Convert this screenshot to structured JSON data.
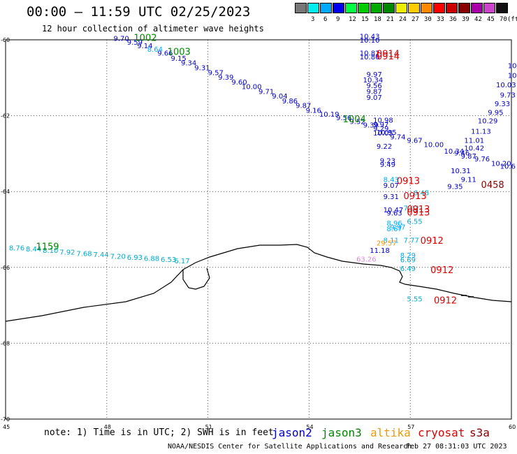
{
  "title": "00:00 – 11:59 UTC 02/25/2023",
  "subtitle": "12 hour collection of altimeter wave heights",
  "note": "note:  1) Time is in UTC;  2) SWH is in feet",
  "credit": "NOAA/NESDIS Center for Satellite Applications and Research",
  "timestamp": "Feb 27 08:31:03 UTC 2023",
  "legend": [
    {
      "name": "jason2",
      "color": "#0000cc"
    },
    {
      "name": "jason3",
      "color": "#008800"
    },
    {
      "name": "altika",
      "color": "#ee9900"
    },
    {
      "name": "cryosat",
      "color": "#dd0000"
    },
    {
      "name": "s3a",
      "color": "#880000"
    }
  ],
  "color_scale": {
    "unit": "(ft)",
    "bins": [
      {
        "color": "#777777",
        "label": ""
      },
      {
        "color": "#00eeee",
        "label": "3"
      },
      {
        "color": "#00aaff",
        "label": "6"
      },
      {
        "color": "#0000ee",
        "label": "9"
      },
      {
        "color": "#00ff44",
        "label": "12"
      },
      {
        "color": "#00cc00",
        "label": "15"
      },
      {
        "color": "#00aa00",
        "label": "18"
      },
      {
        "color": "#008800",
        "label": "21"
      },
      {
        "color": "#eeee00",
        "label": "24"
      },
      {
        "color": "#ffcc00",
        "label": "27"
      },
      {
        "color": "#ff8800",
        "label": "30"
      },
      {
        "color": "#ff0000",
        "label": "33"
      },
      {
        "color": "#cc0000",
        "label": "36"
      },
      {
        "color": "#880000",
        "label": "39"
      },
      {
        "color": "#aa00aa",
        "label": "42"
      },
      {
        "color": "#cc44cc",
        "label": "45"
      },
      {
        "color": "#111111",
        "label": "70"
      }
    ]
  },
  "map": {
    "lon_range": [
      45,
      60
    ],
    "lat_range": [
      -70,
      -60
    ],
    "lon_ticks": [
      "45",
      "48",
      "51",
      "54",
      "57",
      "60"
    ],
    "lat_ticks": [
      "-60",
      "-62",
      "-64",
      "-66",
      "-68",
      "-70"
    ],
    "observations": [
      {
        "lon": 45.1,
        "lat": -65.55,
        "text": "8.76",
        "color": "#00aacc"
      },
      {
        "lon": 45.6,
        "lat": -65.58,
        "text": "8.44",
        "color": "#00aacc"
      },
      {
        "lon": 46.1,
        "lat": -65.62,
        "text": "8.10",
        "color": "#00aacc"
      },
      {
        "lon": 46.6,
        "lat": -65.66,
        "text": "7.92",
        "color": "#00aacc"
      },
      {
        "lon": 47.1,
        "lat": -65.7,
        "text": "7.68",
        "color": "#00aacc"
      },
      {
        "lon": 47.6,
        "lat": -65.73,
        "text": "7.44",
        "color": "#00aacc"
      },
      {
        "lon": 48.1,
        "lat": -65.77,
        "text": "7.20",
        "color": "#00aacc"
      },
      {
        "lon": 48.6,
        "lat": -65.8,
        "text": "6.93",
        "color": "#00aacc"
      },
      {
        "lon": 49.1,
        "lat": -65.83,
        "text": "6.88",
        "color": "#00aacc"
      },
      {
        "lon": 49.6,
        "lat": -65.86,
        "text": "6.53",
        "color": "#00aacc"
      },
      {
        "lon": 50.0,
        "lat": -65.89,
        "text": "6.17",
        "color": "#00aacc"
      },
      {
        "lon": 48.2,
        "lat": -60.03,
        "text": "9.70",
        "color": "#0000cc"
      },
      {
        "lon": 48.6,
        "lat": -60.13,
        "text": "9.59",
        "color": "#0000cc"
      },
      {
        "lon": 48.9,
        "lat": -60.22,
        "text": "9.14",
        "color": "#0000cc"
      },
      {
        "lon": 49.2,
        "lat": -60.31,
        "text": "8.64",
        "color": "#00aaff"
      },
      {
        "lon": 49.5,
        "lat": -60.41,
        "text": "9.66",
        "color": "#0000cc"
      },
      {
        "lon": 49.9,
        "lat": -60.55,
        "text": "9.15",
        "color": "#0000cc"
      },
      {
        "lon": 50.2,
        "lat": -60.67,
        "text": "9.34",
        "color": "#0000cc"
      },
      {
        "lon": 50.6,
        "lat": -60.8,
        "text": "9.31",
        "color": "#0000cc"
      },
      {
        "lon": 51.0,
        "lat": -60.93,
        "text": "9.57",
        "color": "#0000cc"
      },
      {
        "lon": 51.3,
        "lat": -61.05,
        "text": "9.39",
        "color": "#0000cc"
      },
      {
        "lon": 51.7,
        "lat": -61.18,
        "text": "9.60",
        "color": "#0000cc"
      },
      {
        "lon": 52.0,
        "lat": -61.3,
        "text": "10.00",
        "color": "#0000cc"
      },
      {
        "lon": 52.5,
        "lat": -61.43,
        "text": "9.71",
        "color": "#0000cc"
      },
      {
        "lon": 52.9,
        "lat": -61.55,
        "text": "9.04",
        "color": "#0000cc"
      },
      {
        "lon": 53.2,
        "lat": -61.68,
        "text": "9.86",
        "color": "#0000cc"
      },
      {
        "lon": 53.6,
        "lat": -61.8,
        "text": "9.87",
        "color": "#0000cc"
      },
      {
        "lon": 53.9,
        "lat": -61.92,
        "text": "9.16",
        "color": "#0000cc"
      },
      {
        "lon": 54.3,
        "lat": -62.03,
        "text": "10.19",
        "color": "#0000cc"
      },
      {
        "lon": 54.8,
        "lat": -62.12,
        "text": "9.56",
        "color": "#0000cc"
      },
      {
        "lon": 55.2,
        "lat": -62.22,
        "text": "9.52",
        "color": "#0000cc"
      },
      {
        "lon": 55.6,
        "lat": -62.31,
        "text": "9.39",
        "color": "#0000cc"
      },
      {
        "lon": 55.9,
        "lat": -62.4,
        "text": "9.29",
        "color": "#0000cc"
      },
      {
        "lon": 56.0,
        "lat": -62.5,
        "text": "10.95",
        "color": "#0000cc"
      },
      {
        "lon": 56.4,
        "lat": -62.62,
        "text": "9.74",
        "color": "#0000cc"
      },
      {
        "lon": 56.9,
        "lat": -62.72,
        "text": "9.67",
        "color": "#0000cc"
      },
      {
        "lon": 55.5,
        "lat": -59.97,
        "text": "10.43",
        "color": "#0000cc"
      },
      {
        "lon": 55.5,
        "lat": -60.07,
        "text": "10.10",
        "color": "#0000cc"
      },
      {
        "lon": 55.5,
        "lat": -60.41,
        "text": "10.82",
        "color": "#0000cc"
      },
      {
        "lon": 55.5,
        "lat": -60.52,
        "text": "10.86",
        "color": "#0000cc"
      },
      {
        "lon": 55.7,
        "lat": -60.98,
        "text": "9.97",
        "color": "#0000cc"
      },
      {
        "lon": 55.6,
        "lat": -61.12,
        "text": "10.34",
        "color": "#0000cc"
      },
      {
        "lon": 55.7,
        "lat": -61.27,
        "text": "9.56",
        "color": "#0000cc"
      },
      {
        "lon": 55.7,
        "lat": -61.43,
        "text": "9.87",
        "color": "#0000cc"
      },
      {
        "lon": 55.7,
        "lat": -61.58,
        "text": "9.07",
        "color": "#0000cc"
      },
      {
        "lon": 55.9,
        "lat": -62.18,
        "text": "10.98",
        "color": "#0000cc"
      },
      {
        "lon": 55.9,
        "lat": -62.3,
        "text": "9.97",
        "color": "#0000cc"
      },
      {
        "lon": 55.9,
        "lat": -62.52,
        "text": "10.05",
        "color": "#0000cc"
      },
      {
        "lon": 56.0,
        "lat": -62.87,
        "text": "9.22",
        "color": "#0000cc"
      },
      {
        "lon": 56.1,
        "lat": -63.25,
        "text": "9.23",
        "color": "#0000cc"
      },
      {
        "lon": 56.1,
        "lat": -63.35,
        "text": "9.49",
        "color": "#0000cc"
      },
      {
        "lon": 56.2,
        "lat": -63.75,
        "text": "8.43",
        "color": "#00aaff"
      },
      {
        "lon": 56.2,
        "lat": -63.9,
        "text": "9.07",
        "color": "#0000cc"
      },
      {
        "lon": 56.2,
        "lat": -64.2,
        "text": "9.31",
        "color": "#0000cc"
      },
      {
        "lon": 56.2,
        "lat": -64.55,
        "text": "10.47",
        "color": "#0000cc"
      },
      {
        "lon": 56.3,
        "lat": -64.63,
        "text": "9.63",
        "color": "#0000cc"
      },
      {
        "lon": 56.3,
        "lat": -64.9,
        "text": "8.96",
        "color": "#00aaff"
      },
      {
        "lon": 56.3,
        "lat": -65.05,
        "text": "8.67",
        "color": "#00aaff"
      },
      {
        "lon": 56.4,
        "lat": -65.0,
        "text": "9.97",
        "color": "#00aaff"
      },
      {
        "lon": 56.2,
        "lat": -65.35,
        "text": "8.11",
        "color": "#00aaff"
      },
      {
        "lon": 56.8,
        "lat": -65.35,
        "text": "7.77",
        "color": "#00aacc"
      },
      {
        "lon": 56.8,
        "lat": -64.5,
        "text": "7.02",
        "color": "#00aacc"
      },
      {
        "lon": 56.9,
        "lat": -64.85,
        "text": "6.55",
        "color": "#00aacc"
      },
      {
        "lon": 57.1,
        "lat": -64.1,
        "text": "6.45",
        "color": "#00aacc"
      },
      {
        "lon": 55.8,
        "lat": -65.62,
        "text": "11.18",
        "color": "#0000cc"
      },
      {
        "lon": 56.7,
        "lat": -65.75,
        "text": "8.29",
        "color": "#00aaff"
      },
      {
        "lon": 56.7,
        "lat": -65.87,
        "text": "6.69",
        "color": "#00aacc"
      },
      {
        "lon": 56.7,
        "lat": -66.1,
        "text": "6.49",
        "color": "#00aacc"
      },
      {
        "lon": 56.9,
        "lat": -66.9,
        "text": "5.55",
        "color": "#00aacc"
      },
      {
        "lon": 56.0,
        "lat": -65.42,
        "text": "29.57",
        "color": "#ee9900"
      },
      {
        "lon": 55.4,
        "lat": -65.85,
        "text": "63.26",
        "color": "#dd88dd"
      },
      {
        "lon": 57.4,
        "lat": -62.83,
        "text": "10.00",
        "color": "#0000cc"
      },
      {
        "lon": 58.0,
        "lat": -63.0,
        "text": "10.34",
        "color": "#0000cc"
      },
      {
        "lon": 58.3,
        "lat": -63.05,
        "text": "9.46",
        "color": "#0000cc"
      },
      {
        "lon": 58.5,
        "lat": -63.13,
        "text": "9.87",
        "color": "#0000cc"
      },
      {
        "lon": 58.6,
        "lat": -62.92,
        "text": "10.42",
        "color": "#0000cc"
      },
      {
        "lon": 58.9,
        "lat": -63.2,
        "text": "9.76",
        "color": "#0000cc"
      },
      {
        "lon": 58.2,
        "lat": -63.52,
        "text": "10.31",
        "color": "#0000cc"
      },
      {
        "lon": 58.5,
        "lat": -63.75,
        "text": "9.11",
        "color": "#0000cc"
      },
      {
        "lon": 58.1,
        "lat": -63.93,
        "text": "9.35",
        "color": "#0000cc"
      },
      {
        "lon": 58.6,
        "lat": -62.72,
        "text": "11.01",
        "color": "#0000cc"
      },
      {
        "lon": 58.8,
        "lat": -62.48,
        "text": "11.13",
        "color": "#0000cc"
      },
      {
        "lon": 59.0,
        "lat": -62.2,
        "text": "10.29",
        "color": "#0000cc"
      },
      {
        "lon": 59.3,
        "lat": -61.98,
        "text": "9.95",
        "color": "#0000cc"
      },
      {
        "lon": 59.5,
        "lat": -61.75,
        "text": "9.33",
        "color": "#0000cc"
      },
      {
        "lon": 59.7,
        "lat": -61.52,
        "text": "9.73",
        "color": "#0000cc"
      },
      {
        "lon": 59.8,
        "lat": -61.25,
        "text": "10.03",
        "color": "#0000cc"
      },
      {
        "lon": 59.9,
        "lat": -61.0,
        "text": "10",
        "color": "#0000cc"
      },
      {
        "lon": 59.95,
        "lat": -60.75,
        "text": "10",
        "color": "#0000cc"
      },
      {
        "lon": 59.4,
        "lat": -63.32,
        "text": "10.20",
        "color": "#0000cc"
      },
      {
        "lon": 59.9,
        "lat": -63.4,
        "text": "10.6",
        "color": "#0000cc"
      }
    ],
    "time_labels": [
      {
        "lon": 48.8,
        "lat": -60.03,
        "text": "1002",
        "color": "#008800"
      },
      {
        "lon": 49.8,
        "lat": -60.4,
        "text": "1003",
        "color": "#008800"
      },
      {
        "lon": 55.0,
        "lat": -62.17,
        "text": "1004",
        "color": "#008800"
      },
      {
        "lon": 45.9,
        "lat": -65.53,
        "text": "1159",
        "color": "#008800"
      },
      {
        "lon": 56.0,
        "lat": -60.45,
        "text": "0914",
        "color": "#dd0000"
      },
      {
        "lon": 56.0,
        "lat": -60.52,
        "text": "0914",
        "color": "#dd0000"
      },
      {
        "lon": 56.6,
        "lat": -63.8,
        "text": "0913",
        "color": "#dd0000"
      },
      {
        "lon": 56.8,
        "lat": -64.2,
        "text": "0913",
        "color": "#dd0000"
      },
      {
        "lon": 56.9,
        "lat": -64.55,
        "text": "0913",
        "color": "#dd0000"
      },
      {
        "lon": 56.9,
        "lat": -64.63,
        "text": "0913",
        "color": "#dd0000"
      },
      {
        "lon": 57.3,
        "lat": -65.38,
        "text": "0912",
        "color": "#dd0000"
      },
      {
        "lon": 57.6,
        "lat": -66.15,
        "text": "0912",
        "color": "#dd0000"
      },
      {
        "lon": 57.7,
        "lat": -66.95,
        "text": "0912",
        "color": "#dd0000"
      },
      {
        "lon": 59.1,
        "lat": -63.9,
        "text": "0458",
        "color": "#880000"
      }
    ]
  }
}
